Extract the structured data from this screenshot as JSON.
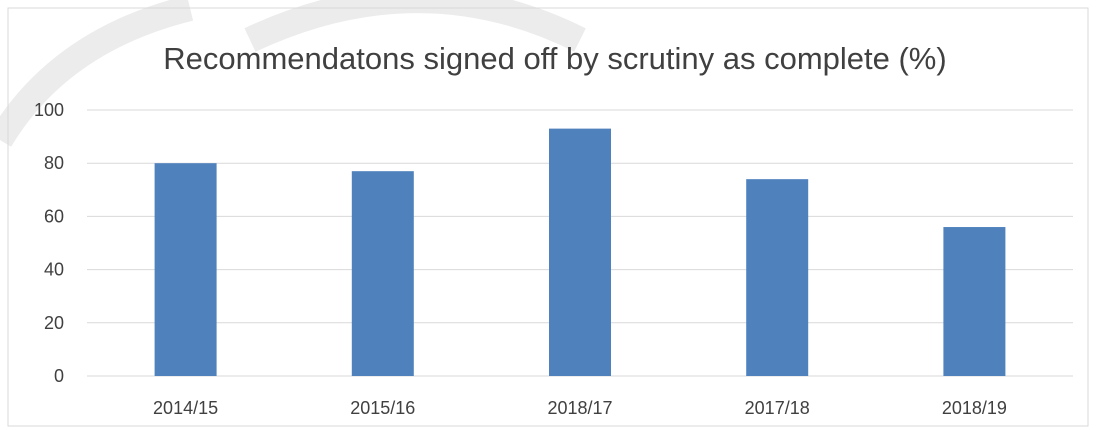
{
  "chart_data": {
    "type": "bar",
    "title": "Recommendatons signed off by scrutiny as complete (%)",
    "xlabel": "",
    "ylabel": "",
    "categories": [
      "2014/15",
      "2015/16",
      "2018/17",
      "2017/18",
      "2018/19"
    ],
    "series": [
      {
        "values": [
          80,
          77,
          93,
          74,
          56
        ],
        "color": "#4f81bd"
      }
    ],
    "ylim": [
      0,
      100
    ],
    "yticks": [
      "0",
      "20",
      "40",
      "60",
      "80",
      "100"
    ],
    "grid": true,
    "legend": "none"
  },
  "colors": {
    "bar": "#4f81bd",
    "gridline": "#d9d9d9",
    "text": "#404040",
    "border": "#d9d9d9"
  }
}
